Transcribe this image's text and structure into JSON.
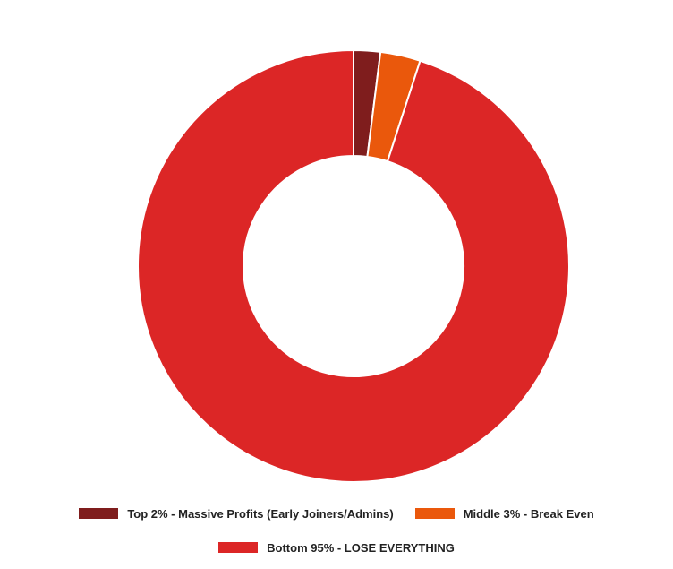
{
  "chart_data": {
    "type": "pie",
    "categories": [
      "Top 2% - Massive Profits (Early Joiners/Admins)",
      "Middle 3% - Break Even",
      "Bottom 95% - LOSE EVERYTHING"
    ],
    "values": [
      2,
      3,
      95
    ],
    "colors": [
      "#7f1d1d",
      "#ea580c",
      "#dc2626"
    ],
    "legend": "bottom"
  }
}
